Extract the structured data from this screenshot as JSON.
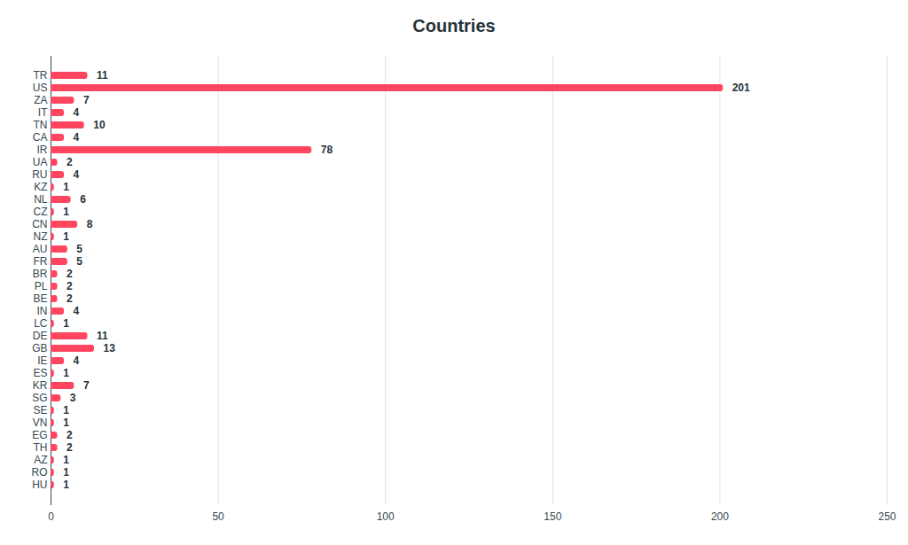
{
  "chart_data": {
    "type": "bar",
    "title": "Countries",
    "orientation": "horizontal",
    "categories": [
      "TR",
      "US",
      "ZA",
      "IT",
      "TN",
      "CA",
      "IR",
      "UA",
      "RU",
      "KZ",
      "NL",
      "CZ",
      "CN",
      "NZ",
      "AU",
      "FR",
      "BR",
      "PL",
      "BE",
      "IN",
      "LC",
      "DE",
      "GB",
      "IE",
      "ES",
      "KR",
      "SG",
      "SE",
      "VN",
      "EG",
      "TH",
      "AZ",
      "RO",
      "HU"
    ],
    "values": [
      11,
      201,
      7,
      4,
      10,
      4,
      78,
      2,
      4,
      1,
      6,
      1,
      8,
      1,
      5,
      5,
      2,
      2,
      2,
      4,
      1,
      11,
      13,
      4,
      1,
      7,
      3,
      1,
      1,
      2,
      2,
      1,
      1,
      1
    ],
    "color": "#ff4560",
    "xlim": [
      0,
      250
    ],
    "xticks": [
      0,
      50,
      100,
      150,
      200,
      250
    ],
    "grid": true,
    "data_labels": true
  }
}
